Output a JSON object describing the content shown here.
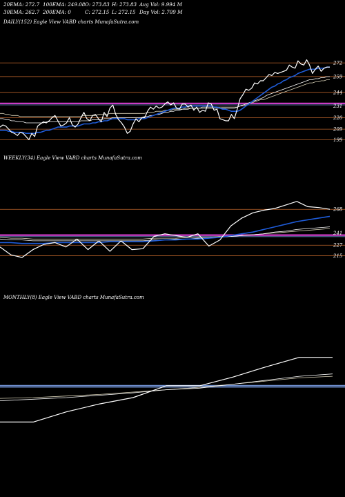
{
  "header": {
    "ema20": "20EMA: 272.7",
    "ema100": "100EMA: 249.08",
    "open": "O: 273.83",
    "high": "H: 273.83",
    "avgvol": "Avg Vol: 9.994  M",
    "ema30": "30EMA: 262.7",
    "ema200": "200EMA: 0",
    "close": "C: 272.15",
    "low": "L: 272.15",
    "dayvol": "Day Vol: 2.709 M"
  },
  "panels": {
    "daily": "DAILY(152) Eagle   View  VABD charts MunafaSutra.com",
    "weekly": "WEEKLY(34) Eagle   View  VABD charts MunafaSutra.com",
    "monthly": "MONTHLY(8) Eagle   View  VABD charts MunafaSutra.com"
  },
  "colors": {
    "price": "#ffffff",
    "ema_blue": "#1e5bd8",
    "magenta": "#d63fd0",
    "orange": "#b8622a",
    "steel": "#6f8fcf"
  },
  "chart_data": [
    {
      "type": "line",
      "name": "daily",
      "yticks": [
        {
          "v": 272,
          "label": "272"
        },
        {
          "v": 259,
          "label": "259"
        },
        {
          "v": 244,
          "label": "244"
        },
        {
          "v": 231,
          "label": "231"
        },
        {
          "v": 220,
          "label": "220"
        },
        {
          "v": 209,
          "label": "209"
        },
        {
          "v": 199,
          "label": "199"
        }
      ],
      "ylim": [
        194,
        278
      ],
      "hlines": [
        {
          "v": 272,
          "color": "#b8622a"
        },
        {
          "v": 259,
          "color": "#b8622a"
        },
        {
          "v": 244,
          "color": "#b8622a"
        },
        {
          "v": 233.5,
          "color": "#d63fd0",
          "thick": true
        },
        {
          "v": 220,
          "color": "#b8622a"
        },
        {
          "v": 209,
          "color": "#b8622a"
        },
        {
          "v": 199,
          "color": "#b8622a"
        }
      ],
      "price": [
        211,
        213,
        212,
        209,
        206,
        205,
        203,
        206,
        205,
        202,
        199,
        205,
        202,
        212,
        214,
        216,
        215,
        217,
        220,
        222,
        217,
        212,
        213,
        215,
        220,
        213,
        211,
        214,
        220,
        225,
        219,
        217,
        222,
        223,
        219,
        216,
        225,
        221,
        229,
        232,
        223,
        218,
        215,
        211,
        205,
        207,
        214,
        219,
        216,
        220,
        220,
        226,
        230,
        228,
        231,
        229,
        230,
        233,
        235,
        232,
        234,
        229,
        228,
        233,
        233,
        230,
        232,
        227,
        230,
        225,
        227,
        226,
        234,
        233,
        227,
        228,
        219,
        218,
        217,
        217,
        223,
        219,
        228,
        238,
        242,
        247,
        246,
        248,
        253,
        252,
        255,
        255,
        258,
        261,
        260,
        263,
        262,
        263,
        264,
        265,
        270,
        268,
        267,
        274,
        271,
        270,
        275,
        270,
        262,
        266,
        269,
        264,
        267,
        268,
        268
      ],
      "ema_blue": [
        208,
        208,
        208,
        207,
        207,
        206,
        206,
        206,
        206,
        205,
        205,
        205,
        205,
        206,
        206,
        207,
        208,
        208,
        209,
        210,
        211,
        211,
        211,
        211,
        212,
        212,
        212,
        212,
        213,
        214,
        214,
        214,
        215,
        215,
        216,
        216,
        217,
        217,
        218,
        219,
        219,
        219,
        219,
        219,
        218,
        218,
        218,
        218,
        219,
        219,
        219,
        220,
        221,
        222,
        223,
        224,
        225,
        226,
        227,
        228,
        229,
        229,
        229,
        230,
        230,
        231,
        231,
        231,
        231,
        231,
        231,
        231,
        231,
        231,
        230,
        230,
        229,
        228,
        228,
        227,
        226,
        226,
        226,
        227,
        229,
        231,
        233,
        235,
        237,
        239,
        241,
        243,
        245,
        247,
        249,
        250,
        252,
        253,
        255,
        256,
        258,
        259,
        260,
        262,
        263,
        264,
        265,
        266,
        266,
        266,
        267,
        267,
        267,
        268,
        268
      ],
      "ema_a": [
        219,
        219,
        218,
        218,
        217,
        217,
        216,
        216,
        216,
        215,
        215,
        215,
        215,
        215,
        215,
        215,
        216,
        216,
        216,
        216,
        216,
        216,
        216,
        216,
        216,
        216,
        216,
        216,
        217,
        217,
        217,
        217,
        218,
        218,
        218,
        218,
        219,
        219,
        219,
        220,
        220,
        220,
        220,
        220,
        220,
        220,
        220,
        220,
        220,
        220,
        221,
        221,
        222,
        222,
        223,
        223,
        224,
        225,
        225,
        226,
        226,
        227,
        227,
        228,
        228,
        228,
        229,
        229,
        229,
        229,
        229,
        229,
        229,
        229,
        229,
        229,
        229,
        229,
        229,
        229,
        229,
        229,
        230,
        231,
        232,
        233,
        234,
        235,
        236,
        237,
        238,
        239,
        241,
        242,
        243,
        244,
        245,
        246,
        247,
        248,
        249,
        250,
        251,
        252,
        253,
        254,
        255,
        256,
        256,
        257,
        257,
        258,
        258,
        259,
        259
      ],
      "ema_b": [
        224,
        224,
        223,
        223,
        222,
        222,
        222,
        221,
        221,
        221,
        221,
        221,
        221,
        221,
        221,
        221,
        221,
        221,
        221,
        221,
        221,
        221,
        221,
        221,
        221,
        221,
        221,
        221,
        221,
        222,
        222,
        222,
        222,
        222,
        223,
        223,
        223,
        223,
        224,
        224,
        224,
        224,
        224,
        224,
        224,
        224,
        224,
        224,
        224,
        224,
        224,
        225,
        225,
        225,
        226,
        226,
        226,
        227,
        227,
        227,
        228,
        228,
        228,
        228,
        229,
        229,
        229,
        229,
        229,
        229,
        230,
        230,
        230,
        230,
        230,
        230,
        230,
        230,
        230,
        230,
        230,
        230,
        230,
        231,
        231,
        232,
        233,
        234,
        235,
        236,
        237,
        237,
        238,
        239,
        240,
        241,
        242,
        243,
        244,
        245,
        246,
        247,
        248,
        249,
        250,
        251,
        252,
        253,
        253,
        254,
        254,
        255,
        255,
        256,
        256
      ]
    },
    {
      "type": "line",
      "name": "weekly",
      "yticks": [
        {
          "v": 268,
          "label": "268"
        },
        {
          "v": 241,
          "label": "241"
        },
        {
          "v": 227,
          "label": "227"
        },
        {
          "v": 215,
          "label": "215"
        }
      ],
      "ylim": [
        198,
        280
      ],
      "hlines": [
        {
          "v": 268,
          "color": "#b8622a"
        },
        {
          "v": 238.5,
          "color": "#d63fd0",
          "thick": true
        },
        {
          "v": 227,
          "color": "#b8622a"
        },
        {
          "v": 215,
          "color": "#b8622a"
        }
      ],
      "price": [
        225,
        216,
        213,
        222,
        228,
        230,
        225,
        234,
        222,
        232,
        220,
        232,
        222,
        223,
        237,
        240,
        238,
        236,
        240,
        226,
        233,
        249,
        258,
        264,
        267,
        269,
        273,
        277,
        271,
        270,
        268
      ],
      "ema_blue": [
        230,
        230,
        229,
        229,
        229,
        230,
        230,
        230,
        230,
        230,
        231,
        231,
        231,
        231,
        232,
        233,
        233,
        234,
        234,
        235,
        236,
        238,
        240,
        242,
        245,
        248,
        251,
        254,
        256,
        258,
        260
      ],
      "ema_a": [
        234,
        233,
        233,
        232,
        232,
        232,
        232,
        232,
        232,
        232,
        232,
        232,
        232,
        232,
        233,
        233,
        234,
        234,
        235,
        235,
        236,
        237,
        238,
        239,
        240,
        242,
        243,
        245,
        246,
        247,
        248
      ],
      "ema_b": [
        236,
        235,
        235,
        234,
        234,
        234,
        234,
        234,
        234,
        234,
        234,
        234,
        234,
        234,
        235,
        235,
        235,
        236,
        236,
        236,
        237,
        237,
        238,
        239,
        240,
        241,
        242,
        243,
        244,
        245,
        246
      ]
    },
    {
      "type": "line",
      "name": "monthly",
      "yticks": [],
      "ylim": [
        180,
        320
      ],
      "hlines": [
        {
          "v": 251,
          "color": "#6f8fcf",
          "thick": true
        }
      ],
      "price": [
        205,
        205,
        218,
        228,
        236,
        251,
        251,
        262,
        275,
        287,
        287
      ],
      "ema_a": [
        232,
        234,
        236,
        239,
        242,
        246,
        248,
        253,
        258,
        263,
        266
      ],
      "ema_b": [
        235,
        236,
        238,
        240,
        243,
        246,
        249,
        253,
        257,
        261,
        263
      ]
    }
  ]
}
